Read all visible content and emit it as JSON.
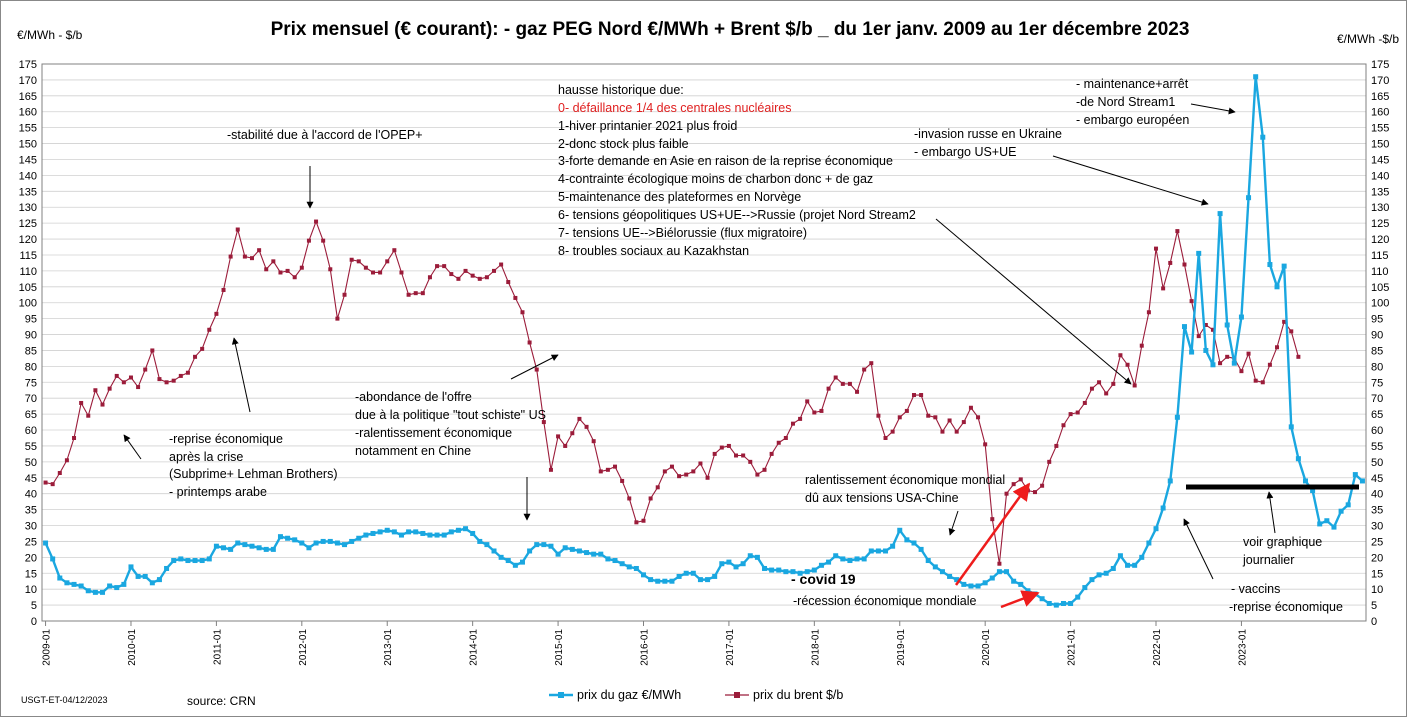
{
  "chart_data": {
    "type": "line",
    "title": "Prix mensuel (€ courant):  - gaz PEG Nord €/MWh + Brent $/b _  du 1er janv. 2009 au 1er décembre 2023",
    "ylabel_left": "€/MWh - $/b",
    "ylabel_right": "€/MWh -$/b",
    "ylim": [
      0,
      175
    ],
    "y_ticks": [
      0,
      5,
      10,
      15,
      20,
      25,
      30,
      35,
      40,
      45,
      50,
      55,
      60,
      65,
      70,
      75,
      80,
      85,
      90,
      95,
      100,
      105,
      110,
      115,
      120,
      125,
      130,
      135,
      140,
      145,
      150,
      155,
      160,
      165,
      170,
      175
    ],
    "x_start": "2009-01",
    "x_end": "2023-12",
    "x_tick_labels": [
      "2009-01",
      "2010-01",
      "2011-01",
      "2012-01",
      "2013-01",
      "2014-01",
      "2015-01",
      "2016-01",
      "2017-01",
      "2018-01",
      "2019-01",
      "2020-01",
      "2021-01",
      "2022-01",
      "2023-01"
    ],
    "grid": true,
    "legend_position": "bottom",
    "series": [
      {
        "name": "prix du gaz €/MWh",
        "color": "#1aa7e0",
        "marker": "square",
        "values": [
          24.5,
          19.5,
          13.5,
          12,
          11.5,
          11,
          9.5,
          9,
          9,
          11,
          10.5,
          11.5,
          17,
          14,
          14,
          12,
          13,
          16.5,
          19,
          19.5,
          19,
          19,
          19,
          19.5,
          23.5,
          23,
          22.5,
          24.5,
          24,
          23.5,
          23,
          22.5,
          22.5,
          26.5,
          26,
          25.5,
          24.5,
          23,
          24.5,
          25,
          25,
          24.5,
          24,
          25,
          26,
          27,
          27.5,
          28,
          28.5,
          28,
          27,
          28,
          28,
          27.5,
          27,
          27,
          27,
          28,
          28.5,
          29,
          27.5,
          25,
          24,
          22,
          20,
          19,
          17.5,
          18.5,
          22,
          24,
          24,
          23.5,
          21,
          23,
          22.5,
          22,
          21.5,
          21,
          21,
          19.5,
          19,
          18,
          17,
          16.5,
          14.5,
          13,
          12.5,
          12.5,
          12.5,
          14,
          15,
          15,
          13,
          13,
          14,
          18,
          18.5,
          17,
          18,
          20.5,
          20,
          16.5,
          16,
          16,
          15.5,
          15.5,
          15,
          15.5,
          16,
          17.5,
          18.5,
          20.5,
          19.5,
          19,
          19.5,
          19.5,
          22,
          22,
          22,
          23.5,
          28.5,
          25.5,
          24.5,
          22.5,
          19,
          17,
          15.5,
          14,
          13,
          11.5,
          11,
          11,
          12,
          13.5,
          15.5,
          15.5,
          12.5,
          11.5,
          9.5,
          8.5,
          7,
          5.5,
          5,
          5.5,
          5.5,
          7.5,
          10.5,
          13,
          14.5,
          15,
          16.5,
          20.5,
          17.5,
          17.5,
          20,
          24.5,
          29,
          35.5,
          44,
          64,
          92.5,
          84.5,
          115.5,
          85,
          80.5,
          128,
          93,
          81,
          95.5,
          133,
          171,
          152,
          112,
          105,
          111.5,
          61,
          51,
          44,
          41,
          30.5,
          31.5,
          29.5,
          34.5,
          36.5,
          46,
          44
        ]
      },
      {
        "name": "prix du brent $/b",
        "color": "#9b1c3a",
        "marker": "square",
        "values": [
          43.5,
          43,
          46.5,
          50.5,
          57.5,
          68.5,
          64.5,
          72.5,
          68,
          73,
          77,
          75,
          76.5,
          73.5,
          79,
          85,
          76,
          75,
          75.5,
          77,
          78,
          83,
          85.5,
          91.5,
          96.5,
          104,
          114.5,
          123,
          114.5,
          114,
          116.5,
          110.5,
          113,
          109.5,
          110,
          108,
          111,
          119.5,
          125.5,
          119.5,
          110.5,
          95,
          102.5,
          113.5,
          113,
          111,
          109.5,
          109.5,
          113,
          116.5,
          109.5,
          102.5,
          103,
          103,
          108,
          111.5,
          111.5,
          109,
          107.5,
          110,
          108.5,
          107.5,
          108,
          110,
          112,
          106.5,
          101.5,
          97,
          87.5,
          79,
          62.5,
          47.5,
          58,
          55,
          59,
          63.5,
          61,
          56.5,
          47,
          47.5,
          48.5,
          44,
          38.5,
          31,
          31.5,
          38.5,
          42,
          47,
          48.5,
          45.5,
          46,
          47,
          49.5,
          45,
          52.5,
          54.5,
          55,
          52,
          52,
          50,
          46,
          47.5,
          52.5,
          56,
          57.5,
          62,
          63.5,
          69,
          65.5,
          66,
          73,
          76.5,
          74.5,
          74.5,
          72,
          79,
          81,
          64.5,
          57.5,
          59.5,
          64,
          66,
          71,
          71,
          64.5,
          64,
          59.5,
          63,
          59.5,
          62.5,
          67,
          64,
          55.5,
          32,
          18,
          40,
          43,
          44.5,
          41,
          40.5,
          42.5,
          50,
          55,
          61.5,
          65,
          65.5,
          68.5,
          73,
          75,
          71.5,
          74.5,
          83.5,
          80.5,
          74,
          86.5,
          97,
          117,
          104.5,
          112.5,
          122.5,
          112,
          100.5,
          89.5,
          93,
          91.5,
          81,
          83,
          82.5,
          78.5,
          84,
          75.5,
          75,
          80.5,
          86,
          94,
          91,
          83
        ]
      }
    ],
    "annotations": [
      {
        "text": "hausse historique due:",
        "color": "#000000"
      },
      {
        "text": "0- défaillance 1/4 des centrales nucléaires",
        "color": "#e02020"
      },
      {
        "text": "1-hiver printanier 2021 plus froid",
        "color": "#000000"
      },
      {
        "text": "2-donc  stock plus faible",
        "color": "#000000"
      },
      {
        "text": "3-forte demande en Asie en raison de la reprise économique",
        "color": "#000000"
      },
      {
        "text": "4-contrainte écologique moins de charbon donc + de gaz",
        "color": "#000000"
      },
      {
        "text": "5-maintenance des plateformes en Norvège",
        "color": "#000000"
      },
      {
        "text": "6- tensions géopolitiques US+UE-->Russie (projet Nord Stream2",
        "color": "#000000"
      },
      {
        "text": "7- tensions UE-->Biélorussie (flux migratoire)",
        "color": "#000000"
      },
      {
        "text": "8- troubles sociaux au Kazakhstan",
        "color": "#000000"
      },
      {
        "text": "-stabilité due à l'accord de l'OPEP+",
        "color": "#000000"
      },
      {
        "text": "- maintenance+arrêt",
        "color": "#000000"
      },
      {
        "text": "-de Nord Stream1",
        "color": "#000000"
      },
      {
        "text": "- embargo  européen",
        "color": "#000000"
      },
      {
        "text": "-invasion russe en Ukraine",
        "color": "#000000"
      },
      {
        "text": "- embargo US+UE",
        "color": "#000000"
      },
      {
        "text": "-reprise économique",
        "color": "#000000"
      },
      {
        "text": "après la crise",
        "color": "#000000"
      },
      {
        "text": "(Subprime+ Lehman Brothers)",
        "color": "#000000"
      },
      {
        "text": "- printemps arabe",
        "color": "#000000"
      },
      {
        "text": "-abondance de l'offre",
        "color": "#000000"
      },
      {
        "text": "due à la politique \"tout schiste\" US",
        "color": "#000000"
      },
      {
        "text": "-ralentissement économique",
        "color": "#000000"
      },
      {
        "text": "notamment en Chine",
        "color": "#000000"
      },
      {
        "text": "ralentissement économique mondial",
        "color": "#000000"
      },
      {
        "text": "dû aux tensions USA-Chine",
        "color": "#000000"
      },
      {
        "text": "- covid 19",
        "color": "#000000"
      },
      {
        "text": "-récession économique mondiale",
        "color": "#000000"
      },
      {
        "text": "voir graphique",
        "color": "#000000"
      },
      {
        "text": "journalier",
        "color": "#000000"
      },
      {
        "text": "- vaccins",
        "color": "#000000"
      },
      {
        "text": "-reprise économique",
        "color": "#000000"
      }
    ]
  },
  "footer": {
    "left_note": "USGT-ET-04/12/2023",
    "source": "source: CRN"
  }
}
